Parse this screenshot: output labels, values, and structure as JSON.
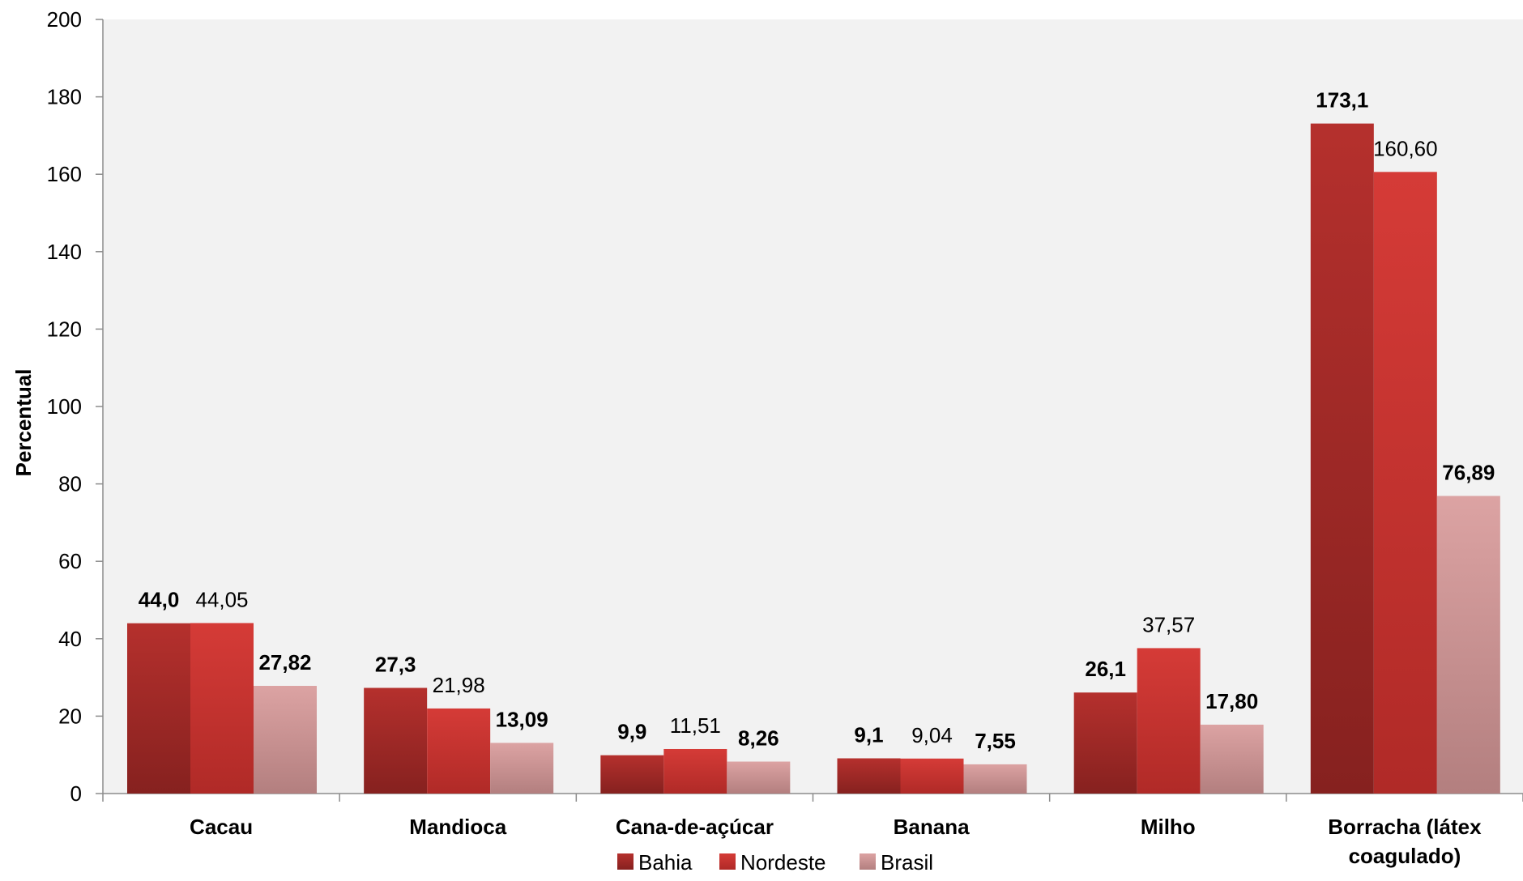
{
  "chart_data": {
    "type": "bar",
    "ylabel": "Percentual",
    "ylim": [
      0,
      200
    ],
    "yticks": [
      0,
      20,
      40,
      60,
      80,
      100,
      120,
      140,
      160,
      180,
      200
    ],
    "categories": [
      [
        "Cacau"
      ],
      [
        "Mandioca"
      ],
      [
        "Cana-de-açúcar"
      ],
      [
        "Banana"
      ],
      [
        "Milho"
      ],
      [
        "Borracha (látex",
        "coagulado)"
      ]
    ],
    "series": [
      {
        "name": "Bahia",
        "values": [
          44.0,
          27.3,
          9.9,
          9.1,
          26.1,
          173.1
        ],
        "labels": [
          "44,0",
          "27,3",
          "9,9",
          "9,1",
          "26,1",
          "173,1"
        ],
        "label_bold": [
          true,
          true,
          true,
          true,
          true,
          true
        ],
        "colors": [
          "#86211f",
          "#b5302d"
        ]
      },
      {
        "name": "Nordeste",
        "values": [
          44.05,
          21.98,
          11.51,
          9.04,
          37.57,
          160.6
        ],
        "labels": [
          "44,05",
          "21,98",
          "11,51",
          "9,04",
          "37,57",
          "160,60"
        ],
        "label_bold": [
          false,
          false,
          false,
          false,
          false,
          false
        ],
        "colors": [
          "#b02a27",
          "#d53b37"
        ]
      },
      {
        "name": "Brasil",
        "values": [
          27.82,
          13.09,
          8.26,
          7.55,
          17.8,
          76.89
        ],
        "labels": [
          "27,82",
          "13,09",
          "8,26",
          "7,55",
          "17,80",
          "76,89"
        ],
        "label_bold": [
          true,
          true,
          true,
          true,
          true,
          true
        ],
        "colors": [
          "#b37f7f",
          "#dca3a3"
        ]
      }
    ],
    "grid": false,
    "plot_background": "#f2f2f2",
    "legend_position": "bottom"
  }
}
